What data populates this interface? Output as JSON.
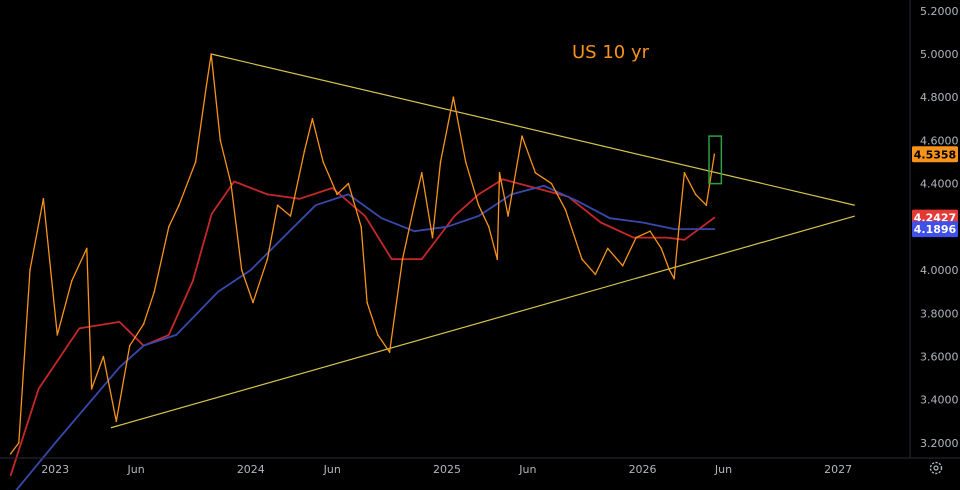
{
  "chart_data": {
    "type": "line",
    "title": "US 10 yr",
    "y_ticks": [
      "3.2000",
      "3.4000",
      "3.6000",
      "3.8000",
      "4.0000",
      "4.2000",
      "4.4000",
      "4.6000",
      "4.8000",
      "5.0000",
      "5.2000"
    ],
    "x_ticks": [
      {
        "label": "2023",
        "date": "2023-01-01"
      },
      {
        "label": "Jun",
        "date": "2023-06-01"
      },
      {
        "label": "2024",
        "date": "2024-01-01"
      },
      {
        "label": "Jun",
        "date": "2024-06-01"
      },
      {
        "label": "2025",
        "date": "2025-01-01"
      },
      {
        "label": "Jun",
        "date": "2025-06-01"
      },
      {
        "label": "2026",
        "date": "2026-01-01"
      },
      {
        "label": "Jun",
        "date": "2026-06-01"
      },
      {
        "label": "2027",
        "date": "2027-01-01"
      }
    ],
    "ylim": [
      3.13,
      5.25
    ],
    "xlim": [
      "2022-09-20",
      "2027-05-15"
    ],
    "grid": false,
    "price_tags": [
      {
        "value": 4.5358,
        "label": "4.5358",
        "color": "#f7931a",
        "text_color": "#000000"
      },
      {
        "value": 4.2427,
        "label": "4.2427",
        "color": "#e53935",
        "text_color": "#ffffff"
      },
      {
        "value": 4.1896,
        "label": "4.1896",
        "color": "#3f51e8",
        "text_color": "#ffffff"
      }
    ],
    "series": [
      {
        "color": "#f7931a",
        "x": [
          "2022-10-10",
          "2022-10-25",
          "2022-11-15",
          "2022-12-10",
          "2023-01-05",
          "2023-02-01",
          "2023-03-01",
          "2023-03-10",
          "2023-04-01",
          "2023-04-25",
          "2023-05-20",
          "2023-06-15",
          "2023-07-05",
          "2023-08-01",
          "2023-08-20",
          "2023-09-20",
          "2023-10-10",
          "2023-10-19",
          "2023-11-05",
          "2023-11-25",
          "2023-12-15",
          "2024-01-05",
          "2024-02-01",
          "2024-02-20",
          "2024-03-15",
          "2024-04-10",
          "2024-04-25",
          "2024-05-15",
          "2024-06-10",
          "2024-07-01",
          "2024-07-25",
          "2024-08-05",
          "2024-08-25",
          "2024-09-16",
          "2024-10-10",
          "2024-11-01",
          "2024-11-15",
          "2024-12-05",
          "2024-12-20",
          "2025-01-13",
          "2025-02-05",
          "2025-03-01",
          "2025-03-20",
          "2025-04-05",
          "2025-04-09",
          "2025-04-25",
          "2025-05-21",
          "2025-06-15",
          "2025-07-15",
          "2025-08-10",
          "2025-09-10",
          "2025-10-05",
          "2025-10-28",
          "2025-11-25",
          "2025-12-20",
          "2026-01-15",
          "2026-02-05",
          "2026-02-20",
          "2026-03-01",
          "2026-03-10",
          "2026-03-20",
          "2026-04-10",
          "2026-04-30",
          "2026-05-15"
        ],
        "values": [
          3.15,
          3.2,
          4.0,
          4.33,
          3.7,
          3.95,
          4.1,
          3.45,
          3.6,
          3.3,
          3.65,
          3.75,
          3.9,
          4.2,
          4.3,
          4.5,
          4.85,
          5.0,
          4.6,
          4.4,
          4.0,
          3.85,
          4.05,
          4.3,
          4.25,
          4.55,
          4.7,
          4.5,
          4.35,
          4.4,
          4.2,
          3.85,
          3.7,
          3.62,
          4.05,
          4.3,
          4.45,
          4.15,
          4.5,
          4.8,
          4.5,
          4.3,
          4.2,
          4.05,
          4.45,
          4.25,
          4.62,
          4.45,
          4.4,
          4.28,
          4.05,
          3.98,
          4.1,
          4.02,
          4.15,
          4.18,
          4.1,
          4.0,
          3.96,
          4.2,
          4.45,
          4.35,
          4.3,
          4.5358
        ]
      },
      {
        "color": "#c62828",
        "x": [
          "2022-10-10",
          "2022-12-01",
          "2023-02-15",
          "2023-05-01",
          "2023-06-15",
          "2023-08-01",
          "2023-09-15",
          "2023-10-20",
          "2023-12-01",
          "2024-02-01",
          "2024-04-01",
          "2024-06-01",
          "2024-08-01",
          "2024-09-20",
          "2024-11-15",
          "2025-01-15",
          "2025-03-01",
          "2025-04-15",
          "2025-06-15",
          "2025-08-15",
          "2025-10-15",
          "2025-12-15",
          "2026-02-15",
          "2026-03-20",
          "2026-05-15"
        ],
        "values": [
          3.05,
          3.45,
          3.73,
          3.76,
          3.65,
          3.7,
          3.95,
          4.26,
          4.41,
          4.35,
          4.33,
          4.38,
          4.25,
          4.05,
          4.05,
          4.25,
          4.35,
          4.42,
          4.38,
          4.34,
          4.22,
          4.15,
          4.15,
          4.14,
          4.2427
        ]
      },
      {
        "color": "#3949ab",
        "x": [
          "2022-10-10",
          "2023-01-01",
          "2023-05-01",
          "2023-06-15",
          "2023-08-15",
          "2023-11-01",
          "2024-01-01",
          "2024-03-01",
          "2024-05-01",
          "2024-07-01",
          "2024-09-01",
          "2024-11-01",
          "2025-01-01",
          "2025-03-01",
          "2025-05-01",
          "2025-07-01",
          "2025-09-01",
          "2025-11-01",
          "2026-01-01",
          "2026-03-01",
          "2026-05-15"
        ],
        "values": [
          2.95,
          3.2,
          3.55,
          3.65,
          3.7,
          3.9,
          4.0,
          4.15,
          4.3,
          4.35,
          4.24,
          4.18,
          4.2,
          4.25,
          4.35,
          4.39,
          4.32,
          4.24,
          4.22,
          4.19,
          4.1896
        ]
      }
    ],
    "trendlines": [
      {
        "color": "#d4c34e",
        "from": {
          "x": "2023-10-19",
          "y": 5.0
        },
        "to": {
          "x": "2027-02-01",
          "y": 4.3
        }
      },
      {
        "color": "#d4c34e",
        "from": {
          "x": "2023-04-15",
          "y": 3.27
        },
        "to": {
          "x": "2027-02-01",
          "y": 4.25
        }
      }
    ],
    "highlight_box": {
      "color": "#2ea043",
      "x0": "2026-05-05",
      "x1": "2026-05-28",
      "y0": 4.4,
      "y1": 4.62
    }
  }
}
